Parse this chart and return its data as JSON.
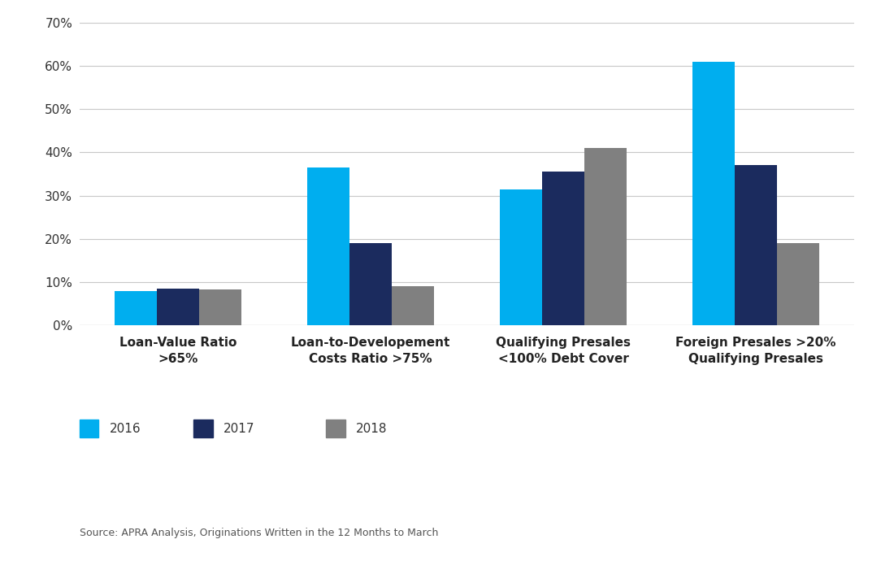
{
  "categories": [
    "Loan-Value Ratio\n>65%",
    "Loan-to-Developement\nCosts Ratio >75%",
    "Qualifying Presales\n<100% Debt Cover",
    "Foreign Presales >20%\nQualifying Presales"
  ],
  "series": {
    "2016": [
      0.08,
      0.365,
      0.315,
      0.61
    ],
    "2017": [
      0.085,
      0.19,
      0.355,
      0.37
    ],
    "2018": [
      0.083,
      0.09,
      0.41,
      0.19
    ]
  },
  "colors": {
    "2016": "#00AEEF",
    "2017": "#1B2B5E",
    "2018": "#808080"
  },
  "ylim": [
    0,
    0.7
  ],
  "yticks": [
    0.0,
    0.1,
    0.2,
    0.3,
    0.4,
    0.5,
    0.6,
    0.7
  ],
  "ytick_labels": [
    "0%",
    "10%",
    "20%",
    "30%",
    "40%",
    "50%",
    "60%",
    "70%"
  ],
  "source_text": "Source: APRA Analysis, Originations Written in the 12 Months to March",
  "background_color": "#FFFFFF",
  "grid_color": "#C8C8C8",
  "bar_width": 0.22,
  "legend_labels": [
    "2016",
    "2017",
    "2018"
  ],
  "label_fontsize": 11,
  "tick_fontsize": 11,
  "source_fontsize": 9,
  "legend_fontsize": 11
}
